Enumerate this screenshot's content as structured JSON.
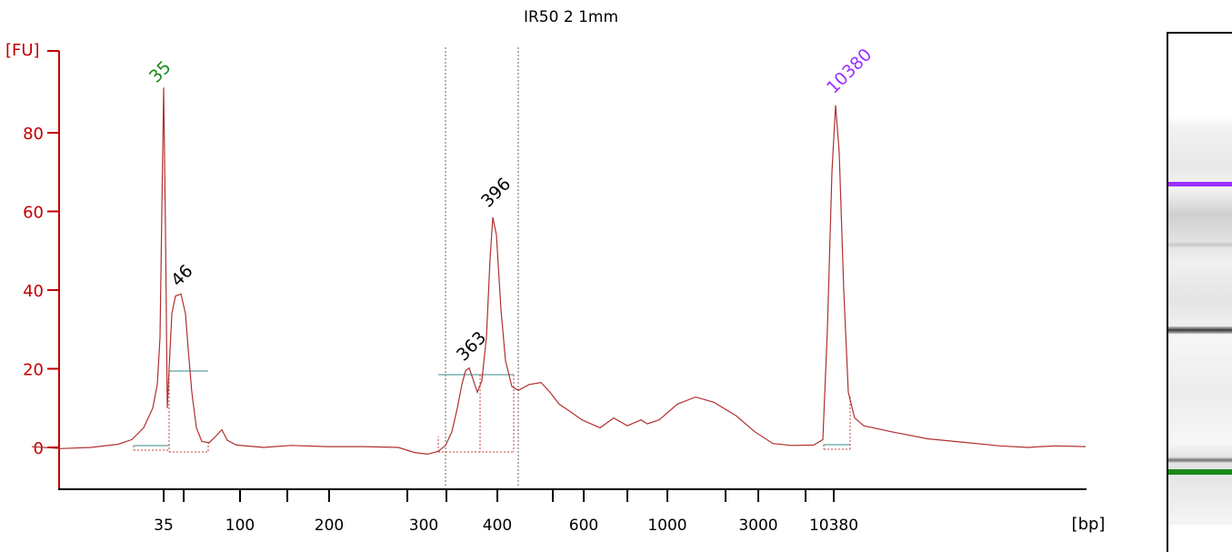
{
  "chart_data": {
    "type": "line",
    "title": "IR50 2 1mm",
    "ylabel": "[FU]",
    "xlabel": "[bp]",
    "ylim": [
      -11,
      103
    ],
    "yticks": [
      0,
      20,
      40,
      60,
      80
    ],
    "xtick_labels": [
      "35",
      "100",
      "200",
      "300",
      "400",
      "600",
      "1000",
      "3000",
      "10380"
    ],
    "peak_labels": [
      {
        "text": "35",
        "color": "#1a8a1a"
      },
      {
        "text": "46",
        "color": "#000000"
      },
      {
        "text": "363",
        "color": "#000000"
      },
      {
        "text": "396",
        "color": "#000000"
      },
      {
        "text": "10380",
        "color": "#9b30ff"
      }
    ],
    "line_color": "#b03030",
    "axis_color": "#c00000",
    "series": [
      {
        "values": [
          [
            35,
            0.2
          ],
          [
            66,
            -0.3
          ],
          [
            100,
            0.0
          ],
          [
            130,
            0.8
          ],
          [
            145,
            2.0
          ],
          [
            158,
            5.0
          ],
          [
            168,
            10.0
          ],
          [
            173,
            16.0
          ],
          [
            176,
            28.0
          ],
          [
            178,
            60.0
          ],
          [
            180,
            91.5
          ],
          [
            182,
            55.0
          ],
          [
            184,
            10.0
          ],
          [
            186,
            20.0
          ],
          [
            189,
            34.0
          ],
          [
            193,
            38.5
          ],
          [
            199,
            39.0
          ],
          [
            204,
            34.0
          ],
          [
            207,
            25.0
          ],
          [
            211,
            14.0
          ],
          [
            216,
            5.0
          ],
          [
            222,
            1.5
          ],
          [
            230,
            1.2
          ],
          [
            238,
            3.0
          ],
          [
            244,
            4.5
          ],
          [
            250,
            1.8
          ],
          [
            260,
            0.6
          ],
          [
            290,
            0.0
          ],
          [
            320,
            0.5
          ],
          [
            360,
            0.2
          ],
          [
            400,
            0.2
          ],
          [
            438,
            0.0
          ],
          [
            456,
            -1.3
          ],
          [
            470,
            -1.7
          ],
          [
            482,
            -1.0
          ],
          [
            490,
            0.5
          ],
          [
            497,
            4.0
          ],
          [
            503,
            10.0
          ],
          [
            508,
            16.0
          ],
          [
            512,
            19.5
          ],
          [
            516,
            20.2
          ],
          [
            520,
            17.5
          ],
          [
            525,
            14.0
          ],
          [
            530,
            17.0
          ],
          [
            535,
            28.0
          ],
          [
            539,
            48.0
          ],
          [
            542,
            58.5
          ],
          [
            546,
            54.0
          ],
          [
            551,
            35.0
          ],
          [
            556,
            22.0
          ],
          [
            563,
            15.5
          ],
          [
            570,
            14.5
          ],
          [
            582,
            16.0
          ],
          [
            595,
            16.5
          ],
          [
            605,
            14.0
          ],
          [
            615,
            11.0
          ],
          [
            628,
            9.0
          ],
          [
            640,
            7.0
          ],
          [
            660,
            5.0
          ],
          [
            675,
            7.5
          ],
          [
            690,
            5.5
          ],
          [
            705,
            7.0
          ],
          [
            712,
            6.0
          ],
          [
            725,
            7.0
          ],
          [
            745,
            11.0
          ],
          [
            765,
            12.8
          ],
          [
            785,
            11.5
          ],
          [
            810,
            8.0
          ],
          [
            830,
            4.0
          ],
          [
            850,
            1.0
          ],
          [
            870,
            0.5
          ],
          [
            895,
            0.6
          ],
          [
            905,
            2.0
          ],
          [
            910,
            30.0
          ],
          [
            915,
            70.0
          ],
          [
            919,
            87.0
          ],
          [
            923,
            75.0
          ],
          [
            928,
            40.0
          ],
          [
            933,
            14.0
          ],
          [
            940,
            7.5
          ],
          [
            950,
            5.5
          ],
          [
            980,
            4.0
          ],
          [
            1020,
            2.2
          ],
          [
            1060,
            1.3
          ],
          [
            1100,
            0.4
          ],
          [
            1130,
            0.0
          ],
          [
            1160,
            0.4
          ],
          [
            1194,
            0.2
          ]
        ]
      }
    ]
  }
}
